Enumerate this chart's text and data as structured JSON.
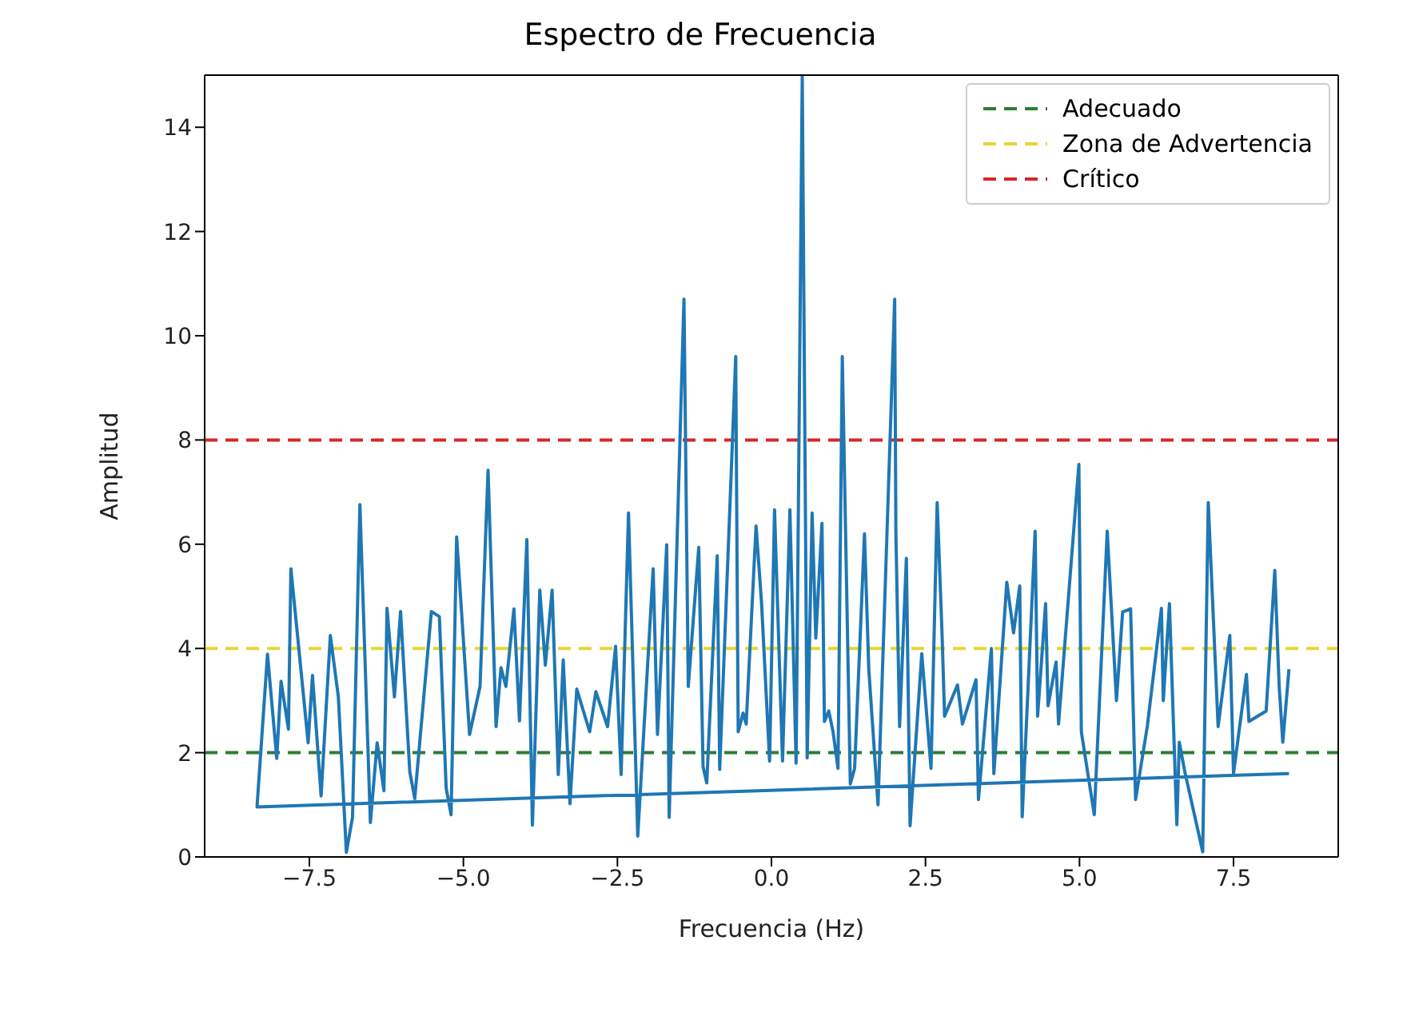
{
  "chart_data": {
    "type": "line",
    "title": "Espectro de Frecuencia",
    "xlabel": "Frecuencia (Hz)",
    "ylabel": "Amplitud",
    "xlim": [
      -9.2,
      9.2
    ],
    "xticks": [
      {
        "value": -7.5,
        "label": "−7.5"
      },
      {
        "value": -5,
        "label": "−5.0"
      },
      {
        "value": -2.5,
        "label": "−2.5"
      },
      {
        "value": 0,
        "label": "0.0"
      },
      {
        "value": 2.5,
        "label": "2.5"
      },
      {
        "value": 5,
        "label": "5.0"
      },
      {
        "value": 7.5,
        "label": "7.5"
      }
    ],
    "ylim": [
      0,
      15
    ],
    "yticks": [
      0,
      2,
      4,
      6,
      8,
      10,
      12,
      14
    ],
    "legend": "top right",
    "marker": "none",
    "line_style": "solid",
    "series": [
      {
        "color": "#1f77b4",
        "x": [
          8.4,
          -8.35,
          -8.18,
          -8.03,
          -7.96,
          -7.84,
          -7.8,
          -7.52,
          -7.45,
          -7.31,
          -7.16,
          -7.03,
          -6.9,
          -6.8,
          -6.68,
          -6.51,
          -6.4,
          -6.29,
          -6.24,
          -6.12,
          -6.02,
          -5.87,
          -5.79,
          -5.52,
          -5.39,
          -5.28,
          -5.2,
          -5.11,
          -4.9,
          -4.73,
          -4.6,
          -4.47,
          -4.39,
          -4.31,
          -4.18,
          -4.09,
          -3.97,
          -3.88,
          -3.76,
          -3.67,
          -3.56,
          -3.46,
          -3.38,
          -3.27,
          -3.16,
          -2.95,
          -2.85,
          -2.66,
          -2.53,
          -2.44,
          -2.32,
          -2.17,
          -1.92,
          -1.85,
          -1.7,
          -1.66,
          -1.42,
          -1.35,
          -1.18,
          -1.11,
          -1.05,
          -0.88,
          -0.84,
          -0.58,
          -0.54,
          -0.46,
          -0.41,
          -0.25,
          -0.16,
          -0.03,
          0.05,
          0.18,
          0.3,
          0.4,
          0.5,
          0.58,
          0.66,
          0.72,
          0.82,
          0.86,
          0.93,
          1.0,
          1.08,
          1.15,
          1.28,
          1.35,
          1.51,
          1.58,
          1.73,
          2.0,
          2.02,
          2.08,
          2.19,
          2.25,
          2.44,
          2.59,
          2.69,
          2.77,
          2.81,
          3.02,
          3.1,
          3.32,
          3.36,
          3.57,
          3.61,
          3.82,
          3.93,
          4.03,
          4.07,
          4.28,
          4.32,
          4.45,
          4.49,
          4.62,
          4.66,
          4.99,
          5.03,
          5.24,
          5.45,
          5.6,
          5.7,
          5.83,
          5.91,
          6.1,
          6.33,
          6.36,
          6.46,
          6.58,
          6.62,
          6.71,
          7.0,
          7.09,
          7.25,
          7.44,
          7.5,
          7.71,
          7.75,
          8.03,
          8.17,
          8.24,
          8.3,
          8.4
        ],
        "values": [
          1.6,
          0.96,
          3.89,
          1.89,
          3.37,
          2.45,
          5.53,
          2.19,
          3.48,
          1.17,
          4.25,
          3.07,
          0.09,
          0.76,
          6.76,
          0.66,
          2.19,
          1.27,
          4.77,
          3.07,
          4.71,
          1.63,
          1.12,
          4.71,
          4.61,
          1.32,
          0.81,
          6.14,
          2.35,
          3.27,
          7.42,
          2.5,
          3.63,
          3.27,
          4.76,
          2.61,
          6.09,
          0.61,
          5.12,
          3.68,
          5.12,
          1.58,
          3.78,
          1.02,
          3.22,
          2.4,
          3.17,
          2.5,
          4.04,
          1.58,
          6.6,
          0.4,
          5.53,
          2.35,
          5.99,
          0.76,
          10.7,
          3.27,
          5.94,
          1.73,
          1.42,
          5.78,
          1.68,
          9.6,
          2.4,
          2.76,
          2.55,
          6.35,
          4.86,
          1.84,
          6.66,
          1.84,
          6.66,
          1.8,
          15,
          1.9,
          6.6,
          4.2,
          6.4,
          2.6,
          2.8,
          2.4,
          1.7,
          9.6,
          1.4,
          1.7,
          6.2,
          3.6,
          1.0,
          10.7,
          6.2,
          2.5,
          5.73,
          0.6,
          3.9,
          1.7,
          6.8,
          4.25,
          2.7,
          3.3,
          2.55,
          3.4,
          1.1,
          4.0,
          1.6,
          5.27,
          4.3,
          5.2,
          0.77,
          6.25,
          2.7,
          4.86,
          2.9,
          3.74,
          2.55,
          7.53,
          2.4,
          0.81,
          6.25,
          3.0,
          4.7,
          4.76,
          1.1,
          2.5,
          4.77,
          3.0,
          4.86,
          0.62,
          2.2,
          1.63,
          0.1,
          6.8,
          2.5,
          4.25,
          1.6,
          3.5,
          2.6,
          2.8,
          5.5,
          3.3,
          2.2,
          3.6
        ]
      }
    ],
    "ref_lines": [
      {
        "axis": "y",
        "value": 2,
        "label": "Adecuado",
        "color": "#2e7d32",
        "line_style": "dashed"
      },
      {
        "axis": "y",
        "value": 4,
        "label": "Zona de Advertencia",
        "color": "#e8d633",
        "line_style": "dashed"
      },
      {
        "axis": "y",
        "value": 8,
        "label": "Crítico",
        "color": "#d62728",
        "line_style": "dashed"
      }
    ]
  }
}
